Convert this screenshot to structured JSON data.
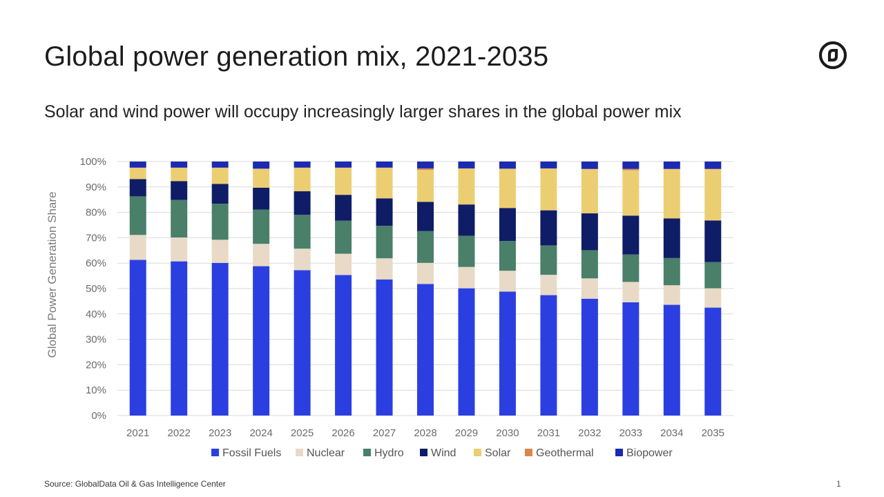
{
  "header": {
    "title": "Global power generation mix, 2021-2035",
    "subtitle": "Solar and wind power will occupy increasingly larger shares in the global power mix"
  },
  "footer": {
    "source": "Source: GlobalData Oil & Gas Intelligence Center",
    "page_number": "1"
  },
  "logo": {
    "icon": "globaldata-logo-icon"
  },
  "colors": {
    "Fossil Fuels": "#2b3fe0",
    "Nuclear": "#e8dac7",
    "Hydro": "#4a7f6a",
    "Wind": "#0f1d66",
    "Solar": "#ecce72",
    "Geothermal": "#d9874e",
    "Biopower": "#1a2bb0",
    "grid": "#d9d9d9"
  },
  "chart_data": {
    "type": "bar",
    "stacked": true,
    "title": "Global power generation mix, 2021-2035",
    "xlabel": "",
    "ylabel": "Global Power Generation Share",
    "ylim": [
      0,
      100
    ],
    "y_ticks": [
      "0%",
      "10%",
      "20%",
      "30%",
      "40%",
      "50%",
      "60%",
      "70%",
      "80%",
      "90%",
      "100%"
    ],
    "grid": true,
    "legend_position": "bottom",
    "categories": [
      "2021",
      "2022",
      "2023",
      "2024",
      "2025",
      "2026",
      "2027",
      "2028",
      "2029",
      "2030",
      "2031",
      "2032",
      "2033",
      "2034",
      "2035"
    ],
    "series": [
      {
        "name": "Fossil Fuels",
        "values": [
          61.3,
          60.7,
          60.1,
          58.8,
          57.2,
          55.3,
          53.6,
          51.8,
          50.1,
          48.8,
          47.4,
          46.0,
          44.6,
          43.6,
          42.5
        ]
      },
      {
        "name": "Nuclear",
        "values": [
          9.8,
          9.4,
          9.1,
          8.8,
          8.5,
          8.4,
          8.3,
          8.3,
          8.4,
          8.2,
          8.0,
          8.0,
          8.0,
          7.7,
          7.6
        ]
      },
      {
        "name": "Hydro",
        "values": [
          15.2,
          14.8,
          14.2,
          13.5,
          13.3,
          13.0,
          12.8,
          12.5,
          12.3,
          11.7,
          11.6,
          11.1,
          10.8,
          10.7,
          10.3
        ]
      },
      {
        "name": "Wind",
        "values": [
          6.8,
          7.4,
          7.8,
          8.6,
          9.3,
          10.2,
          10.8,
          11.5,
          12.3,
          13.0,
          13.8,
          14.5,
          15.3,
          15.6,
          16.4
        ]
      },
      {
        "name": "Solar",
        "values": [
          4.4,
          5.2,
          6.3,
          7.4,
          9.2,
          10.6,
          12.0,
          12.6,
          14.1,
          15.4,
          16.4,
          17.4,
          17.9,
          19.4,
          20.2
        ]
      },
      {
        "name": "Geothermal",
        "values": [
          0.1,
          0.1,
          0.1,
          0.1,
          0.1,
          0.1,
          0.1,
          0.6,
          0.1,
          0.1,
          0.1,
          0.1,
          0.5,
          0.1,
          0.1
        ]
      },
      {
        "name": "Biopower",
        "values": [
          2.4,
          2.4,
          2.4,
          2.8,
          2.4,
          2.4,
          2.4,
          2.7,
          2.7,
          2.8,
          2.7,
          2.9,
          2.9,
          2.9,
          2.9
        ]
      }
    ]
  }
}
